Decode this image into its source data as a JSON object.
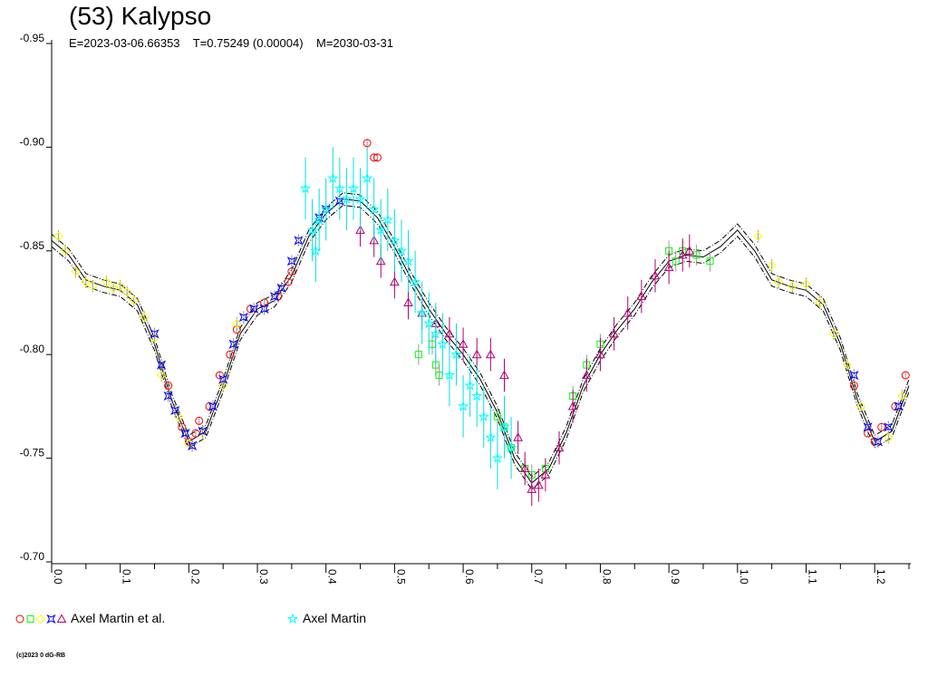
{
  "chart_data": {
    "type": "scatter",
    "title": "(53) Kalypso",
    "subtitle": {
      "epoch": "E=2023-03-06.66353",
      "period": "T=0.75249 (0.00004)",
      "model_date": "M=2030-03-31"
    },
    "xlabel": "",
    "ylabel": "",
    "xlim": [
      0.0,
      1.25
    ],
    "ylim": [
      -0.95,
      -0.7
    ],
    "y_ticks": [
      "-0.95",
      "-0.90",
      "-0.85",
      "-0.80",
      "-0.75",
      "-0.70"
    ],
    "y_tick_values": [
      -0.95,
      -0.9,
      -0.85,
      -0.8,
      -0.75,
      -0.7
    ],
    "x_ticks": [
      "0.0",
      "0.1",
      "0.2",
      "0.3",
      "0.4",
      "0.5",
      "0.6",
      "0.7",
      "0.8",
      "0.9",
      "1.0",
      "1.1",
      "1.2"
    ],
    "x_tick_values": [
      0.0,
      0.1,
      0.2,
      0.3,
      0.4,
      0.5,
      0.6,
      0.7,
      0.8,
      0.9,
      1.0,
      1.1,
      1.2
    ],
    "grid": false,
    "model": {
      "phase": [
        0.0,
        0.025,
        0.05,
        0.075,
        0.1,
        0.125,
        0.15,
        0.175,
        0.2,
        0.225,
        0.25,
        0.275,
        0.3,
        0.325,
        0.35,
        0.375,
        0.4,
        0.425,
        0.45,
        0.475,
        0.5,
        0.525,
        0.55,
        0.575,
        0.6,
        0.625,
        0.65,
        0.675,
        0.7,
        0.725,
        0.75,
        0.775,
        0.8,
        0.825,
        0.85,
        0.875,
        0.9,
        0.925,
        0.95,
        0.975,
        1.0,
        1.025,
        1.05,
        1.075,
        1.1,
        1.125,
        1.15,
        1.175,
        1.2,
        1.225,
        1.25
      ],
      "mag": [
        -0.855,
        -0.848,
        -0.836,
        -0.833,
        -0.831,
        -0.824,
        -0.805,
        -0.778,
        -0.758,
        -0.763,
        -0.785,
        -0.81,
        -0.822,
        -0.826,
        -0.838,
        -0.857,
        -0.868,
        -0.875,
        -0.874,
        -0.866,
        -0.852,
        -0.836,
        -0.822,
        -0.81,
        -0.8,
        -0.788,
        -0.772,
        -0.75,
        -0.738,
        -0.745,
        -0.762,
        -0.785,
        -0.8,
        -0.812,
        -0.822,
        -0.835,
        -0.845,
        -0.848,
        -0.847,
        -0.852,
        -0.86,
        -0.85,
        -0.836,
        -0.833,
        -0.831,
        -0.824,
        -0.805,
        -0.778,
        -0.758,
        -0.763,
        -0.785
      ]
    },
    "series": [
      {
        "name": "red-circle",
        "marker": "circle",
        "color": "#ff0000",
        "err": 0.002,
        "points": [
          [
            0.17,
            -0.785
          ],
          [
            0.19,
            -0.765
          ],
          [
            0.2,
            -0.758
          ],
          [
            0.21,
            -0.762
          ],
          [
            0.215,
            -0.768
          ],
          [
            0.23,
            -0.775
          ],
          [
            0.245,
            -0.79
          ],
          [
            0.26,
            -0.8
          ],
          [
            0.27,
            -0.812
          ],
          [
            0.29,
            -0.822
          ],
          [
            0.31,
            -0.825
          ],
          [
            0.33,
            -0.828
          ],
          [
            0.345,
            -0.835
          ],
          [
            0.35,
            -0.84
          ],
          [
            0.46,
            -0.902
          ],
          [
            0.47,
            -0.895
          ],
          [
            0.475,
            -0.895
          ],
          [
            1.17,
            -0.785
          ],
          [
            1.19,
            -0.762
          ],
          [
            1.2,
            -0.758
          ],
          [
            1.21,
            -0.765
          ],
          [
            1.23,
            -0.775
          ],
          [
            1.245,
            -0.79
          ]
        ]
      },
      {
        "name": "green-square",
        "marker": "square",
        "color": "#00ff00",
        "err": 0.005,
        "points": [
          [
            0.535,
            -0.8
          ],
          [
            0.555,
            -0.805
          ],
          [
            0.56,
            -0.795
          ],
          [
            0.565,
            -0.79
          ],
          [
            0.65,
            -0.77
          ],
          [
            0.66,
            -0.765
          ],
          [
            0.67,
            -0.755
          ],
          [
            0.69,
            -0.745
          ],
          [
            0.7,
            -0.742
          ],
          [
            0.72,
            -0.745
          ],
          [
            0.76,
            -0.78
          ],
          [
            0.78,
            -0.795
          ],
          [
            0.8,
            -0.805
          ],
          [
            0.9,
            -0.85
          ],
          [
            0.91,
            -0.845
          ],
          [
            0.92,
            -0.85
          ],
          [
            0.94,
            -0.848
          ],
          [
            0.96,
            -0.845
          ]
        ]
      },
      {
        "name": "yellow-diamond",
        "marker": "diamond",
        "color": "#ffff00",
        "err": 0.003,
        "points": [
          [
            0.01,
            -0.857
          ],
          [
            0.02,
            -0.85
          ],
          [
            0.035,
            -0.84
          ],
          [
            0.05,
            -0.835
          ],
          [
            0.06,
            -0.833
          ],
          [
            0.08,
            -0.835
          ],
          [
            0.09,
            -0.832
          ],
          [
            0.1,
            -0.833
          ],
          [
            0.11,
            -0.83
          ],
          [
            0.12,
            -0.826
          ],
          [
            0.135,
            -0.818
          ],
          [
            0.15,
            -0.808
          ],
          [
            0.16,
            -0.79
          ],
          [
            0.185,
            -0.77
          ],
          [
            0.2,
            -0.757
          ],
          [
            0.22,
            -0.762
          ],
          [
            0.25,
            -0.785
          ],
          [
            0.27,
            -0.815
          ],
          [
            1.03,
            -0.857
          ],
          [
            1.05,
            -0.843
          ],
          [
            1.06,
            -0.835
          ],
          [
            1.08,
            -0.833
          ],
          [
            1.1,
            -0.834
          ],
          [
            1.12,
            -0.825
          ],
          [
            1.14,
            -0.81
          ],
          [
            1.16,
            -0.795
          ],
          [
            1.18,
            -0.775
          ],
          [
            1.22,
            -0.76
          ],
          [
            1.24,
            -0.78
          ]
        ]
      },
      {
        "name": "blue-star",
        "marker": "xstar",
        "color": "#0000ff",
        "err": 0.003,
        "points": [
          [
            0.15,
            -0.81
          ],
          [
            0.16,
            -0.795
          ],
          [
            0.17,
            -0.78
          ],
          [
            0.18,
            -0.773
          ],
          [
            0.195,
            -0.762
          ],
          [
            0.205,
            -0.756
          ],
          [
            0.22,
            -0.763
          ],
          [
            0.235,
            -0.775
          ],
          [
            0.25,
            -0.788
          ],
          [
            0.265,
            -0.805
          ],
          [
            0.28,
            -0.818
          ],
          [
            0.295,
            -0.822
          ],
          [
            0.31,
            -0.822
          ],
          [
            0.325,
            -0.828
          ],
          [
            0.335,
            -0.832
          ],
          [
            0.35,
            -0.845
          ],
          [
            0.36,
            -0.855
          ],
          [
            0.39,
            -0.866
          ],
          [
            0.4,
            -0.87
          ],
          [
            0.42,
            -0.874
          ],
          [
            1.17,
            -0.79
          ],
          [
            1.19,
            -0.765
          ],
          [
            1.205,
            -0.758
          ],
          [
            1.22,
            -0.765
          ],
          [
            1.235,
            -0.775
          ]
        ]
      },
      {
        "name": "purple-triangle",
        "marker": "triangle",
        "color": "#b0006f",
        "err": 0.008,
        "points": [
          [
            0.45,
            -0.86
          ],
          [
            0.47,
            -0.855
          ],
          [
            0.48,
            -0.845
          ],
          [
            0.5,
            -0.835
          ],
          [
            0.52,
            -0.825
          ],
          [
            0.54,
            -0.82
          ],
          [
            0.56,
            -0.815
          ],
          [
            0.58,
            -0.81
          ],
          [
            0.6,
            -0.805
          ],
          [
            0.62,
            -0.8
          ],
          [
            0.64,
            -0.8
          ],
          [
            0.66,
            -0.79
          ],
          [
            0.68,
            -0.76
          ],
          [
            0.69,
            -0.745
          ],
          [
            0.7,
            -0.735
          ],
          [
            0.71,
            -0.737
          ],
          [
            0.72,
            -0.742
          ],
          [
            0.74,
            -0.755
          ],
          [
            0.76,
            -0.775
          ],
          [
            0.78,
            -0.79
          ],
          [
            0.8,
            -0.8
          ],
          [
            0.82,
            -0.81
          ],
          [
            0.84,
            -0.82
          ],
          [
            0.86,
            -0.828
          ],
          [
            0.88,
            -0.838
          ],
          [
            0.9,
            -0.842
          ],
          [
            0.92,
            -0.848
          ],
          [
            0.93,
            -0.85
          ]
        ]
      },
      {
        "name": "cyan-star",
        "marker": "star",
        "color": "#00ffff",
        "err": 0.015,
        "points": [
          [
            0.37,
            -0.88
          ],
          [
            0.38,
            -0.86
          ],
          [
            0.385,
            -0.85
          ],
          [
            0.39,
            -0.865
          ],
          [
            0.4,
            -0.87
          ],
          [
            0.41,
            -0.885
          ],
          [
            0.42,
            -0.88
          ],
          [
            0.43,
            -0.875
          ],
          [
            0.44,
            -0.88
          ],
          [
            0.45,
            -0.875
          ],
          [
            0.46,
            -0.885
          ],
          [
            0.47,
            -0.87
          ],
          [
            0.48,
            -0.86
          ],
          [
            0.49,
            -0.865
          ],
          [
            0.5,
            -0.855
          ],
          [
            0.51,
            -0.85
          ],
          [
            0.52,
            -0.845
          ],
          [
            0.53,
            -0.835
          ],
          [
            0.54,
            -0.82
          ],
          [
            0.55,
            -0.815
          ],
          [
            0.56,
            -0.81
          ],
          [
            0.57,
            -0.805
          ],
          [
            0.58,
            -0.79
          ],
          [
            0.59,
            -0.8
          ],
          [
            0.6,
            -0.775
          ],
          [
            0.61,
            -0.785
          ],
          [
            0.62,
            -0.78
          ],
          [
            0.63,
            -0.77
          ],
          [
            0.64,
            -0.76
          ],
          [
            0.65,
            -0.75
          ],
          [
            0.66,
            -0.765
          ],
          [
            0.67,
            -0.755
          ]
        ]
      }
    ],
    "legend": [
      {
        "label": "Axel Martin et al.",
        "markers": [
          "circle",
          "square",
          "diamond",
          "xstar",
          "triangle"
        ],
        "colors": [
          "#ff0000",
          "#00ff00",
          "#ffff00",
          "#0000ff",
          "#b0006f"
        ]
      },
      {
        "label": "Axel Martin",
        "markers": [
          "star"
        ],
        "colors": [
          "#00ffff"
        ]
      }
    ],
    "legend_placement": "bottom"
  },
  "copyright": "(c)2023 0 dG-RB"
}
